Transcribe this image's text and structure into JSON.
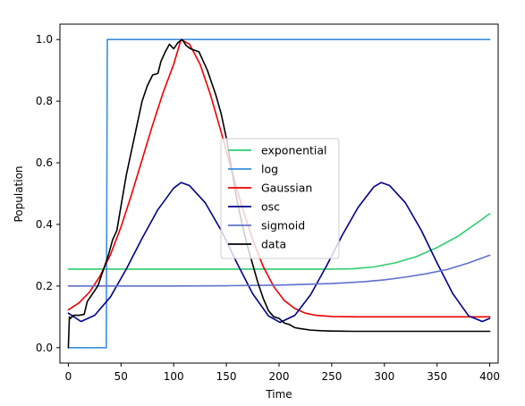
{
  "chart_data": {
    "type": "line",
    "title": "",
    "xlabel": "Time",
    "ylabel": "Population",
    "xlim": [
      -8,
      408
    ],
    "ylim": [
      -0.05,
      1.05
    ],
    "xticks": [
      0,
      50,
      100,
      150,
      200,
      250,
      300,
      350,
      400
    ],
    "yticks": [
      0.0,
      0.2,
      0.4,
      0.6,
      0.8,
      1.0
    ],
    "xtick_labels": [
      "0",
      "50",
      "100",
      "150",
      "200",
      "250",
      "300",
      "350",
      "400"
    ],
    "ytick_labels": [
      "0.0",
      "0.2",
      "0.4",
      "0.6",
      "0.8",
      "1.0"
    ],
    "grid": false,
    "legend_position": "center",
    "series": [
      {
        "name": "exponential",
        "color": "#2ecc71",
        "x": [
          0,
          25,
          50,
          100,
          150,
          200,
          250,
          270,
          290,
          310,
          330,
          350,
          370,
          390,
          400
        ],
        "values": [
          0.255,
          0.255,
          0.255,
          0.255,
          0.255,
          0.255,
          0.255,
          0.256,
          0.262,
          0.275,
          0.295,
          0.325,
          0.362,
          0.41,
          0.435
        ]
      },
      {
        "name": "log",
        "color": "#3a8fe0",
        "x": [
          0,
          36,
          37,
          100,
          200,
          300,
          400
        ],
        "values": [
          0.0,
          0.0,
          1.0,
          1.0,
          1.0,
          1.0,
          1.0
        ]
      },
      {
        "name": "Gaussian",
        "color": "#ee0000",
        "x": [
          0,
          10,
          20,
          30,
          40,
          50,
          60,
          70,
          80,
          90,
          100,
          107,
          115,
          125,
          135,
          145,
          155,
          165,
          175,
          185,
          195,
          205,
          215,
          225,
          235,
          250,
          275,
          300,
          350,
          400
        ],
        "values": [
          0.123,
          0.145,
          0.18,
          0.232,
          0.302,
          0.392,
          0.497,
          0.61,
          0.723,
          0.828,
          0.92,
          1.0,
          0.985,
          0.92,
          0.82,
          0.7,
          0.575,
          0.455,
          0.35,
          0.263,
          0.198,
          0.153,
          0.127,
          0.112,
          0.105,
          0.101,
          0.1,
          0.1,
          0.1,
          0.1
        ]
      },
      {
        "name": "osc",
        "color": "#00008b",
        "x": [
          0,
          12,
          25,
          40,
          55,
          70,
          85,
          100,
          107,
          115,
          130,
          145,
          160,
          175,
          190,
          201,
          215,
          230,
          245,
          260,
          275,
          290,
          297,
          305,
          320,
          335,
          350,
          365,
          380,
          393,
          400
        ],
        "values": [
          0.112,
          0.085,
          0.105,
          0.165,
          0.255,
          0.355,
          0.448,
          0.518,
          0.536,
          0.526,
          0.47,
          0.381,
          0.275,
          0.175,
          0.103,
          0.082,
          0.105,
          0.172,
          0.265,
          0.365,
          0.455,
          0.522,
          0.536,
          0.526,
          0.47,
          0.381,
          0.275,
          0.175,
          0.103,
          0.085,
          0.095
        ]
      },
      {
        "name": "sigmoid",
        "color": "#6070cc",
        "x": [
          0,
          50,
          100,
          150,
          200,
          250,
          280,
          300,
          320,
          340,
          360,
          380,
          400
        ],
        "values": [
          0.2,
          0.2,
          0.2,
          0.201,
          0.203,
          0.208,
          0.214,
          0.22,
          0.229,
          0.24,
          0.254,
          0.275,
          0.3
        ]
      },
      {
        "name": "data",
        "color": "#000000",
        "x": [
          0,
          1,
          2,
          5,
          10,
          15,
          18,
          22,
          28,
          33,
          38,
          42,
          46,
          50,
          55,
          60,
          65,
          70,
          75,
          80,
          85,
          88,
          92,
          96,
          100,
          104,
          108,
          112,
          116,
          120,
          124,
          128,
          132,
          136,
          140,
          145,
          150,
          155,
          160,
          165,
          170,
          175,
          180,
          185,
          190,
          195,
          200,
          205,
          210,
          215,
          220,
          230,
          240,
          250,
          270,
          300,
          350,
          400
        ],
        "values": [
          0.0,
          0.1,
          0.095,
          0.105,
          0.105,
          0.108,
          0.15,
          0.17,
          0.2,
          0.25,
          0.3,
          0.35,
          0.38,
          0.46,
          0.56,
          0.64,
          0.72,
          0.8,
          0.85,
          0.885,
          0.89,
          0.93,
          0.96,
          0.985,
          0.97,
          0.99,
          1.0,
          0.98,
          0.97,
          0.965,
          0.96,
          0.93,
          0.9,
          0.86,
          0.82,
          0.76,
          0.68,
          0.58,
          0.48,
          0.4,
          0.33,
          0.27,
          0.21,
          0.16,
          0.12,
          0.1,
          0.095,
          0.08,
          0.075,
          0.065,
          0.062,
          0.057,
          0.055,
          0.054,
          0.053,
          0.053,
          0.053,
          0.053
        ]
      }
    ]
  }
}
